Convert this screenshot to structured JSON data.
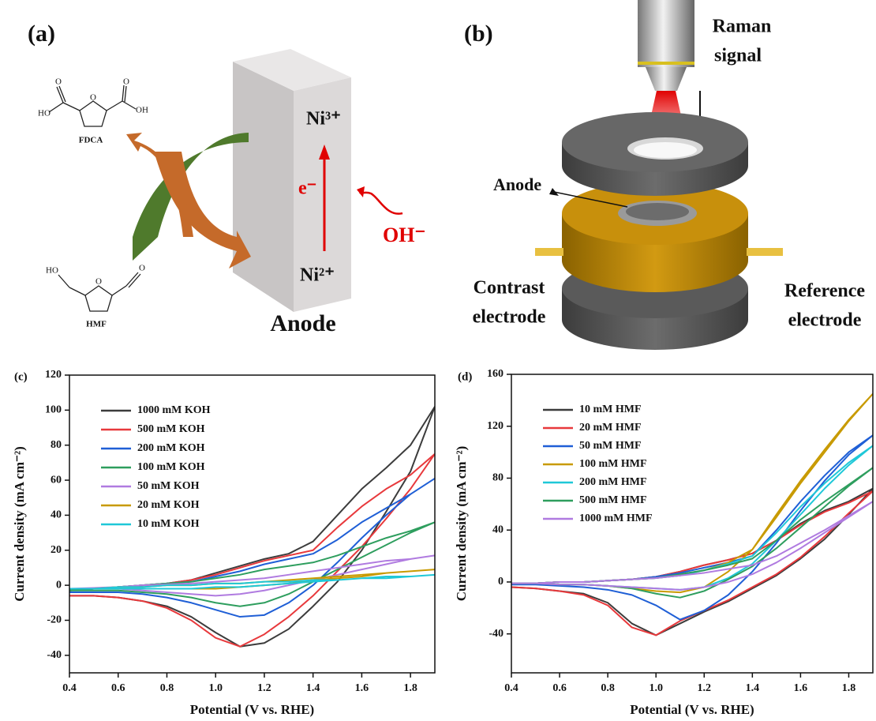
{
  "panel_a": {
    "label": "(a)",
    "fdca_atoms": [
      "HO",
      "O",
      "O",
      "OH",
      "O"
    ],
    "fdca_name": "FDCA",
    "hmf_atoms": [
      "HO",
      "O",
      "O"
    ],
    "hmf_name": "HMF",
    "ni3": "Ni³⁺",
    "electron": "e⁻",
    "hydroxide": "OH⁻",
    "ni2": "Ni²⁺",
    "anode": "Anode"
  },
  "panel_b": {
    "label": "(b)",
    "raman": [
      "Raman",
      "signal"
    ],
    "anode": "Anode",
    "counter": [
      "Contrast",
      "electrode"
    ],
    "reference": [
      "Reference",
      "electrode"
    ]
  },
  "chart_data": [
    {
      "type": "line",
      "panel_label": "(c)",
      "x_label": "Potential (V vs. RHE)",
      "y_label": "Current density (mA cm⁻²)",
      "x": [
        0.4,
        0.5,
        0.6,
        0.7,
        0.8,
        0.9,
        1.0,
        1.1,
        1.2,
        1.3,
        1.4,
        1.5,
        1.6,
        1.7,
        1.8,
        1.9,
        1.8,
        1.7,
        1.6,
        1.5,
        1.4,
        1.3,
        1.2,
        1.1,
        1.0,
        0.9,
        0.8,
        0.7,
        0.6,
        0.5,
        0.4
      ],
      "xlim": [
        0.4,
        1.9
      ],
      "xticks": [
        0.4,
        0.6,
        0.8,
        {
          "value": 1,
          "label": "1.0"
        },
        1.2,
        1.4,
        1.6,
        1.8
      ],
      "ylim": [
        -50,
        120
      ],
      "yticks": [
        -40,
        -20,
        0,
        20,
        40,
        60,
        80,
        100,
        120
      ],
      "legend": "upper left",
      "series": [
        {
          "name": "1000 mM KOH",
          "color": "#3c3c3c",
          "values": [
            -3,
            -2,
            -1,
            0,
            1,
            3,
            7,
            11,
            15,
            18,
            25,
            40,
            55,
            67,
            80,
            102,
            65,
            42,
            20,
            2,
            -12,
            -25,
            -33,
            -35,
            -27,
            -18,
            -12,
            -9,
            -7,
            -6,
            -6
          ]
        },
        {
          "name": "500 mM KOH",
          "color": "#e8393c",
          "values": [
            -3,
            -2,
            -1,
            0,
            1,
            3,
            6,
            10,
            14,
            17,
            20,
            33,
            45,
            55,
            63,
            75,
            55,
            38,
            22,
            8,
            -6,
            -18,
            -28,
            -35,
            -30,
            -20,
            -13,
            -9,
            -7,
            -6,
            -6
          ]
        },
        {
          "name": "200 mM KOH",
          "color": "#1f5fd6",
          "values": [
            -3,
            -2,
            -1,
            0,
            1,
            2,
            5,
            8,
            12,
            15,
            18,
            26,
            36,
            44,
            52,
            61,
            52,
            40,
            27,
            13,
            0,
            -10,
            -17,
            -18,
            -14,
            -10,
            -7,
            -5,
            -4,
            -4,
            -4
          ]
        },
        {
          "name": "100 mM KOH",
          "color": "#2e9e5e",
          "values": [
            -3,
            -2,
            -1,
            0,
            1,
            2,
            4,
            6,
            9,
            11,
            13,
            17,
            22,
            27,
            31,
            36,
            30,
            23,
            16,
            9,
            2,
            -5,
            -10,
            -12,
            -10,
            -7,
            -5,
            -4,
            -3,
            -3,
            -3
          ]
        },
        {
          "name": "50 mM KOH",
          "color": "#b07be0",
          "values": [
            -2,
            -1.5,
            -1,
            0,
            0.5,
            1,
            2,
            3,
            4,
            6,
            8,
            10,
            12,
            14,
            15,
            17,
            15,
            12,
            9,
            6,
            3,
            0,
            -3,
            -5,
            -6,
            -5,
            -4,
            -3,
            -2,
            -2,
            -2
          ]
        },
        {
          "name": "20 mM KOH",
          "color": "#c89a00",
          "values": [
            -2,
            -2,
            -1,
            -1,
            0,
            0,
            1,
            1,
            2,
            3,
            4,
            5,
            6,
            7,
            8,
            9,
            8,
            7,
            5,
            4,
            3,
            1,
            0,
            -1,
            -2,
            -2,
            -2,
            -2,
            -2,
            -2,
            -2
          ]
        },
        {
          "name": "10 mM KOH",
          "color": "#1fc8d8",
          "values": [
            -2,
            -2,
            -1,
            -1,
            0,
            0,
            1,
            1,
            2,
            2,
            3,
            3,
            4,
            5,
            5,
            6,
            5,
            4,
            4,
            3,
            2,
            1,
            0,
            -1,
            -1,
            -2,
            -2,
            -2,
            -2,
            -2,
            -2
          ]
        }
      ]
    },
    {
      "type": "line",
      "panel_label": "(d)",
      "x_label": "Potential (V vs. RHE)",
      "y_label": "Current density (mA cm⁻²)",
      "x": [
        0.4,
        0.5,
        0.6,
        0.7,
        0.8,
        0.9,
        1.0,
        1.1,
        1.2,
        1.3,
        1.4,
        1.5,
        1.6,
        1.7,
        1.8,
        1.9,
        1.8,
        1.7,
        1.6,
        1.5,
        1.4,
        1.3,
        1.2,
        1.1,
        1.0,
        0.9,
        0.8,
        0.7,
        0.6,
        0.5,
        0.4
      ],
      "xlim": [
        0.4,
        1.9
      ],
      "xticks": [
        0.4,
        0.6,
        0.8,
        {
          "value": 1,
          "label": "1.0"
        },
        1.2,
        1.4,
        1.6,
        1.8
      ],
      "ylim": [
        -70,
        160
      ],
      "yticks": [
        -40,
        0,
        40,
        80,
        120,
        160
      ],
      "legend": "upper left",
      "series": [
        {
          "name": "10 mM HMF",
          "color": "#3c3c3c",
          "values": [
            -1,
            -1,
            0,
            0,
            1,
            2,
            4,
            8,
            13,
            17,
            22,
            32,
            45,
            55,
            62,
            72,
            52,
            33,
            18,
            5,
            -5,
            -15,
            -23,
            -32,
            -41,
            -32,
            -16,
            -9,
            -7,
            -5,
            -4
          ]
        },
        {
          "name": "20 mM HMF",
          "color": "#e8393c",
          "values": [
            -1,
            -1,
            0,
            0,
            1,
            2,
            4,
            8,
            13,
            17,
            22,
            32,
            44,
            54,
            61,
            70,
            53,
            35,
            19,
            6,
            -4,
            -14,
            -22,
            -30,
            -41,
            -35,
            -18,
            -10,
            -7,
            -5,
            -4
          ]
        },
        {
          "name": "50 mM HMF",
          "color": "#1f5fd6",
          "values": [
            -1,
            -1,
            0,
            0,
            1,
            2,
            4,
            7,
            11,
            15,
            20,
            40,
            62,
            82,
            100,
            113,
            98,
            78,
            55,
            30,
            8,
            -10,
            -22,
            -29,
            -18,
            -10,
            -6,
            -4,
            -3,
            -2,
            -2
          ]
        },
        {
          "name": "100 mM HMF",
          "color": "#c89a00",
          "values": [
            -1,
            -1,
            0,
            0,
            1,
            2,
            3,
            5,
            9,
            15,
            25,
            52,
            78,
            102,
            125,
            145,
            124,
            100,
            76,
            50,
            25,
            8,
            -4,
            -8,
            -7,
            -5,
            -3,
            -2,
            -2,
            -1,
            -1
          ]
        },
        {
          "name": "200 mM HMF",
          "color": "#1fc8d8",
          "values": [
            -1,
            -1,
            0,
            0,
            1,
            2,
            3,
            5,
            9,
            14,
            20,
            38,
            58,
            76,
            92,
            105,
            90,
            72,
            52,
            32,
            14,
            3,
            -4,
            -6,
            -5,
            -4,
            -3,
            -2,
            -2,
            -1,
            -1
          ]
        },
        {
          "name": "500 mM HMF",
          "color": "#2e9e5e",
          "values": [
            -1,
            -1,
            0,
            0,
            1,
            2,
            3,
            6,
            9,
            13,
            18,
            32,
            48,
            62,
            75,
            88,
            74,
            58,
            42,
            26,
            12,
            2,
            -7,
            -12,
            -9,
            -5,
            -3,
            -2,
            -2,
            -1,
            -1
          ]
        },
        {
          "name": "1000 mM HMF",
          "color": "#b07be0",
          "values": [
            -1,
            -1,
            0,
            0,
            1,
            2,
            3,
            5,
            7,
            10,
            13,
            20,
            30,
            40,
            51,
            62,
            50,
            38,
            26,
            15,
            6,
            0,
            -4,
            -6,
            -5,
            -4,
            -3,
            -2,
            -2,
            -1,
            -1
          ]
        }
      ]
    }
  ]
}
